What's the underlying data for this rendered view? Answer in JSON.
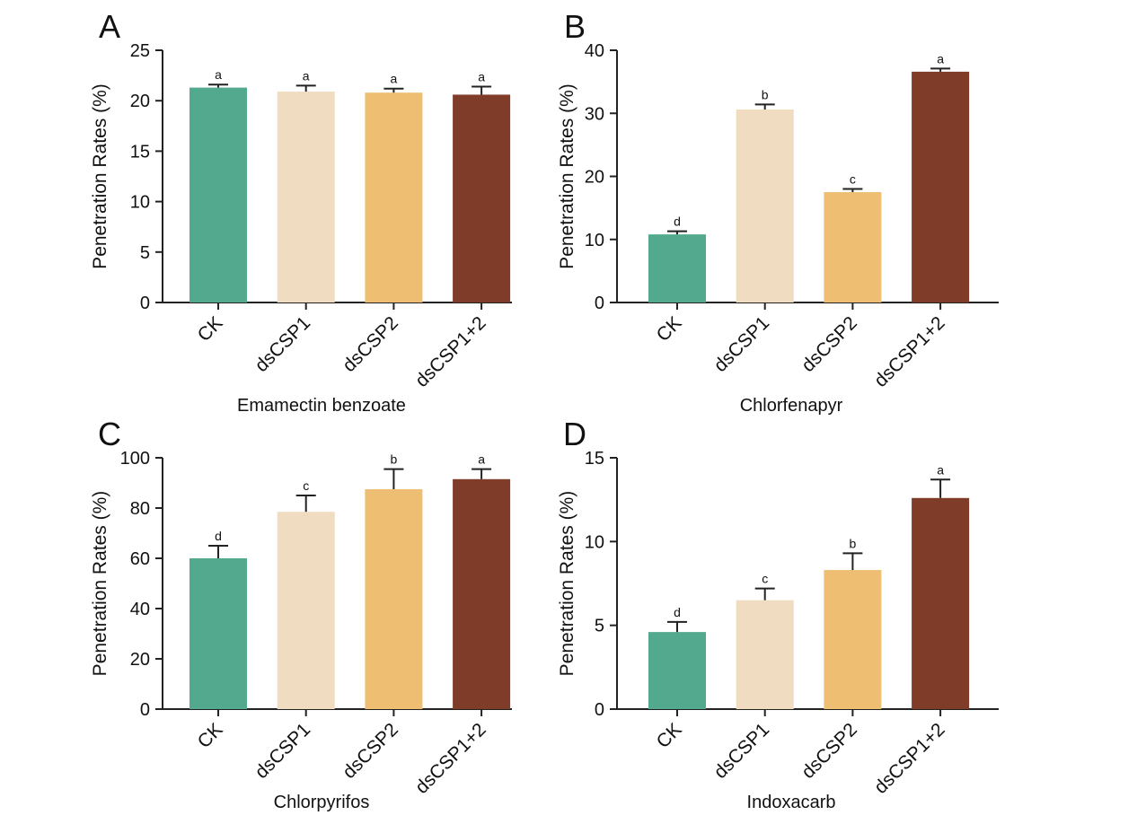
{
  "colors": {
    "CK": "#52a98e",
    "dsCSP1": "#f0dcc0",
    "dsCSP2": "#eebe72",
    "dsCSP1+2": "#7f3c28"
  },
  "chart_data": [
    {
      "type": "bar",
      "panel_letter": "A",
      "title": "Emamectin benzoate",
      "ylabel": "Penetration Rates (%)",
      "categories": [
        "CK",
        "dsCSP1",
        "dsCSP2",
        "dsCSP1+2"
      ],
      "values": [
        21.3,
        20.9,
        20.8,
        20.6
      ],
      "errors": [
        0.3,
        0.6,
        0.4,
        0.8
      ],
      "letters": [
        "a",
        "a",
        "a",
        "a"
      ],
      "ylim": [
        0,
        25
      ],
      "yticks": [
        0,
        5,
        10,
        15,
        20,
        25
      ]
    },
    {
      "type": "bar",
      "panel_letter": "B",
      "title": "Chlorfenapyr",
      "ylabel": "Penetration Rates (%)",
      "categories": [
        "CK",
        "dsCSP1",
        "dsCSP2",
        "dsCSP1+2"
      ],
      "values": [
        10.8,
        30.6,
        17.5,
        36.6
      ],
      "errors": [
        0.5,
        0.8,
        0.5,
        0.5
      ],
      "letters": [
        "d",
        "b",
        "c",
        "a"
      ],
      "ylim": [
        0,
        40
      ],
      "yticks": [
        0,
        10,
        20,
        30,
        40
      ]
    },
    {
      "type": "bar",
      "panel_letter": "C",
      "title": "Chlorpyrifos",
      "ylabel": "Penetration Rates (%)",
      "categories": [
        "CK",
        "dsCSP1",
        "dsCSP2",
        "dsCSP1+2"
      ],
      "values": [
        60,
        78.5,
        87.5,
        91.5
      ],
      "errors": [
        5,
        6.5,
        8,
        4
      ],
      "letters": [
        "d",
        "c",
        "b",
        "a"
      ],
      "ylim": [
        0,
        100
      ],
      "yticks": [
        0,
        20,
        40,
        60,
        80,
        100
      ]
    },
    {
      "type": "bar",
      "panel_letter": "D",
      "title": "Indoxacarb",
      "ylabel": "Penetration Rates (%)",
      "categories": [
        "CK",
        "dsCSP1",
        "dsCSP2",
        "dsCSP1+2"
      ],
      "values": [
        4.6,
        6.5,
        8.3,
        12.6
      ],
      "errors": [
        0.6,
        0.7,
        1.0,
        1.1
      ],
      "letters": [
        "d",
        "c",
        "b",
        "a"
      ],
      "ylim": [
        0,
        15
      ],
      "yticks": [
        0,
        5,
        10,
        15
      ]
    }
  ]
}
